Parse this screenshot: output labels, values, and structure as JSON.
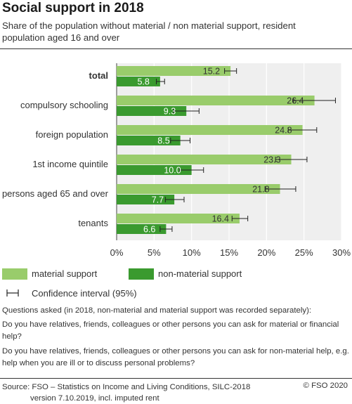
{
  "title": "Social support in 2018",
  "subtitle": "Share of the population without material / non material support, resident population aged 16 and over",
  "legend": {
    "material": "material support",
    "nonmaterial": "non-material support",
    "ci": "Confidence interval (95%)"
  },
  "notes": [
    "Questions asked (in 2018, non-material and material support was recorded separately):",
    "Do you have relatives, friends, colleagues or other persons you can ask for material or financial help?",
    "Do you have relatives, friends, colleagues or other persons you can ask for non-material help, e.g. help when you are ill or to discuss personal problems?"
  ],
  "source": {
    "line1": "Source: FSO – Statistics on Income and Living Conditions, SILC-2018",
    "line2": "version 7.10.2019, incl. imputed rent"
  },
  "copyright": "© FSO 2020",
  "colors": {
    "material": "#99cc6b",
    "nonmaterial": "#3a9a2f",
    "plot_bg": "#efefef",
    "grid": "#ffffff"
  },
  "chart_data": {
    "type": "bar",
    "orientation": "horizontal",
    "categories": [
      "total",
      "compulsory schooling",
      "foreign population",
      "1st income quintile",
      "persons aged 65 and over",
      "tenants"
    ],
    "bold_categories": [
      "total"
    ],
    "series": [
      {
        "name": "material support",
        "values": [
          15.2,
          26.4,
          24.8,
          23.3,
          21.8,
          16.4
        ],
        "ci_low": [
          14.4,
          23.6,
          22.9,
          21.2,
          19.8,
          15.4
        ],
        "ci_high": [
          16.0,
          29.2,
          26.7,
          25.4,
          23.9,
          17.5
        ]
      },
      {
        "name": "non-material support",
        "values": [
          5.8,
          9.3,
          8.5,
          10.0,
          7.7,
          6.6
        ],
        "ci_low": [
          5.3,
          7.6,
          7.2,
          8.4,
          6.5,
          5.8
        ],
        "ci_high": [
          6.4,
          11.0,
          9.8,
          11.6,
          9.0,
          7.4
        ]
      }
    ],
    "xlim": [
      0,
      30
    ],
    "xticks": [
      0,
      5,
      10,
      15,
      20,
      25,
      30
    ],
    "xtick_labels": [
      "0%",
      "5%",
      "10%",
      "15%",
      "20%",
      "25%",
      "30%"
    ],
    "grid": true,
    "legend_position": "bottom"
  }
}
